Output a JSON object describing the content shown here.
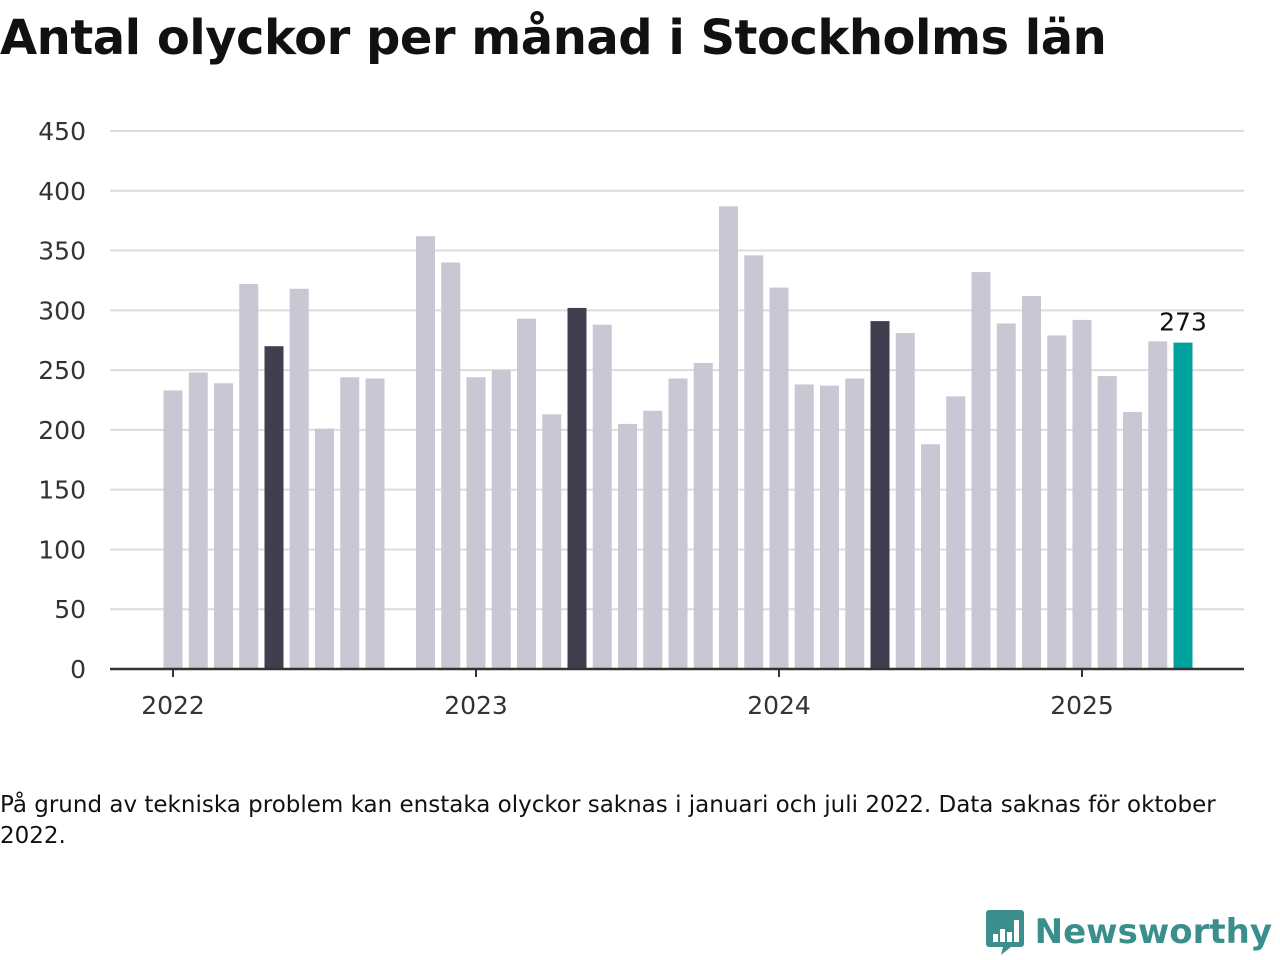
{
  "chart_data": {
    "type": "bar",
    "title": "Antal olyckor per månad i Stockholms län",
    "ylim": [
      0,
      450
    ],
    "yticks": [
      "0",
      "50",
      "100",
      "150",
      "200",
      "250",
      "300",
      "350",
      "400",
      "450"
    ],
    "x_labels": [
      "2022",
      "2023",
      "2024",
      "2025"
    ],
    "categories": [
      "2022-01",
      "2022-02",
      "2022-03",
      "2022-04",
      "2022-05",
      "2022-06",
      "2022-07",
      "2022-08",
      "2022-09",
      "2022-10",
      "2022-11",
      "2022-12",
      "2023-01",
      "2023-02",
      "2023-03",
      "2023-04",
      "2023-05",
      "2023-06",
      "2023-07",
      "2023-08",
      "2023-09",
      "2023-10",
      "2023-11",
      "2023-12",
      "2024-01",
      "2024-02",
      "2024-03",
      "2024-04",
      "2024-05",
      "2024-06",
      "2024-07",
      "2024-08",
      "2024-09",
      "2024-10",
      "2024-11",
      "2024-12",
      "2025-01",
      "2025-02",
      "2025-03",
      "2025-04",
      "2025-05"
    ],
    "values": [
      233,
      248,
      239,
      322,
      270,
      318,
      201,
      244,
      243,
      null,
      362,
      340,
      244,
      250,
      293,
      213,
      302,
      288,
      205,
      216,
      243,
      256,
      387,
      346,
      319,
      238,
      237,
      243,
      291,
      281,
      188,
      228,
      332,
      289,
      312,
      279,
      292,
      245,
      215,
      274,
      273
    ],
    "highlight_month": "05",
    "last_value_label": "273",
    "grid": true,
    "colors": {
      "bar": "#c8c7d3",
      "highlight": "#3f3f4f",
      "latest": "#00a39b",
      "grid": "#dcdcdc",
      "axis": "#333333"
    }
  },
  "note": "På grund av tekniska problem kan enstaka olyckor saknas i januari och juli 2022. Data saknas för oktober 2022.",
  "logo": {
    "text": "Newsworthy",
    "icon": "bar-chart-speech-bubble-icon",
    "color": "#3a8f8c"
  }
}
